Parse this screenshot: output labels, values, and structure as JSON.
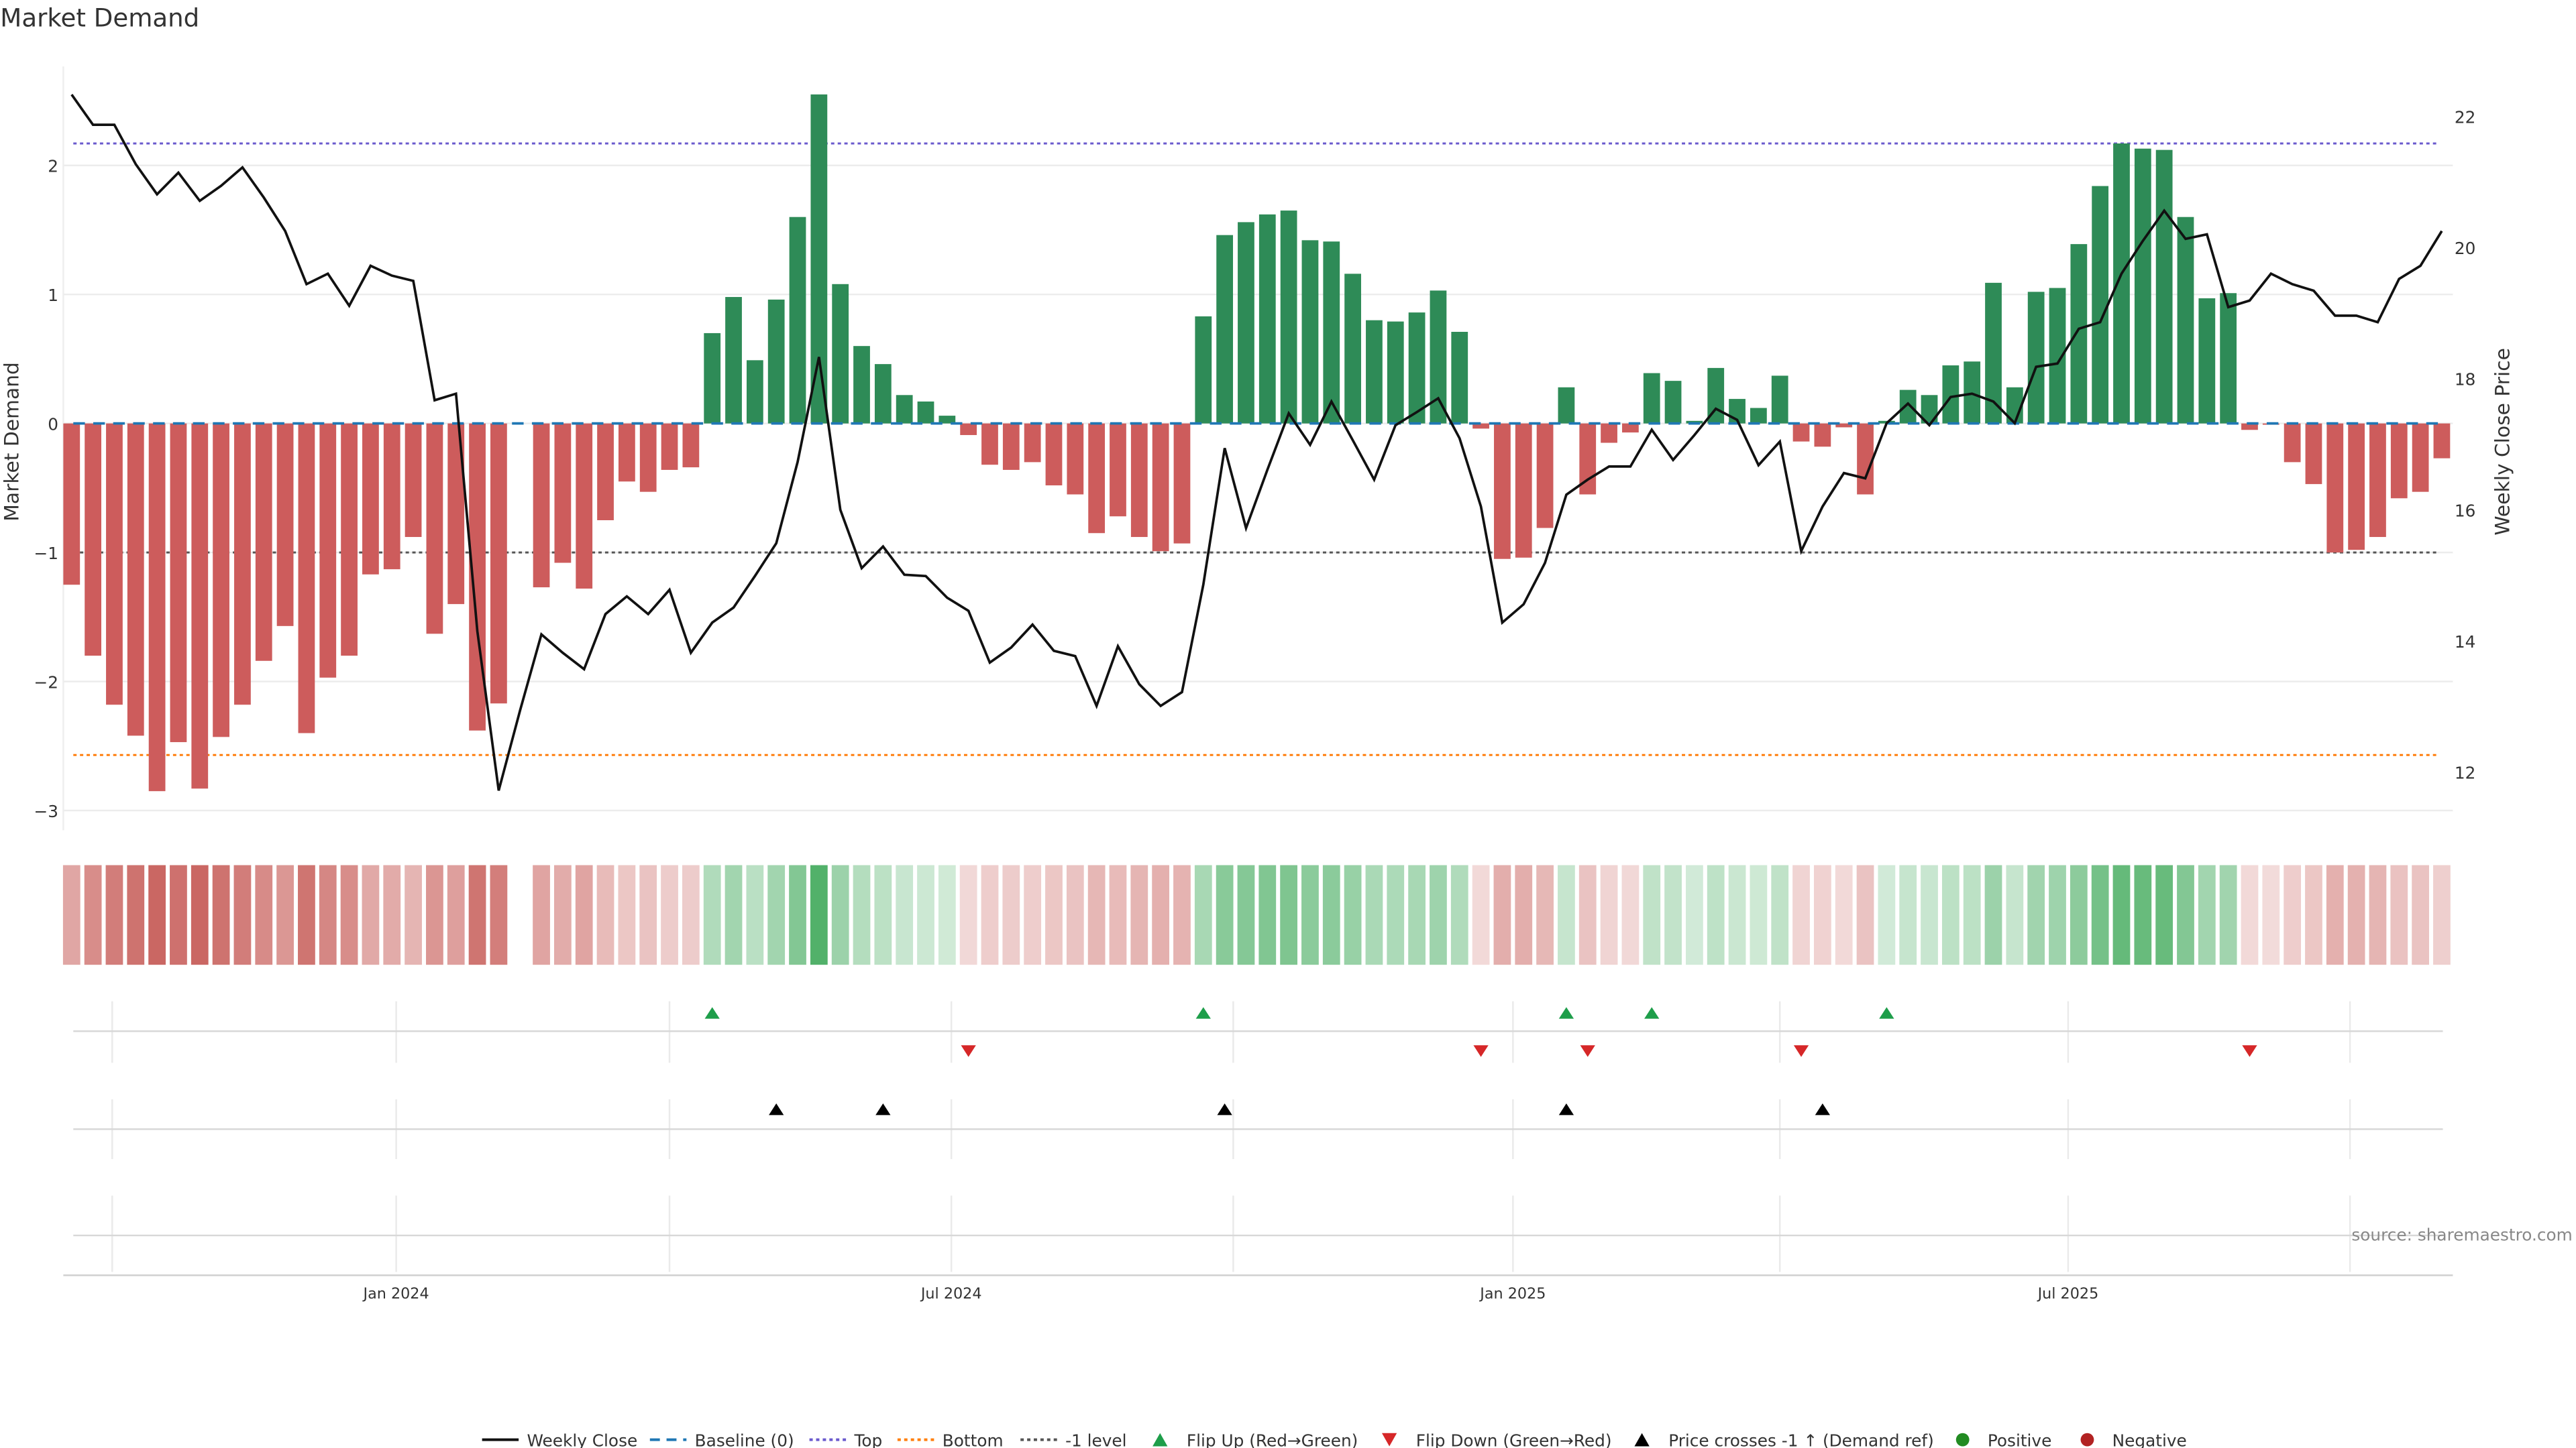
{
  "chart_data": {
    "type": "bar",
    "title": "Market Demand",
    "ylabel": "Market Demand",
    "y2label": "Weekly Close Price",
    "ylim": [
      -3.3,
      2.85
    ],
    "y2lim": [
      11.2,
      22.6
    ],
    "yticks": [
      "2",
      "1",
      "0",
      "−1",
      "−2",
      "−3"
    ],
    "ytick_values": [
      2,
      1,
      0,
      -1,
      -2,
      -3
    ],
    "y2ticks": [
      "22",
      "20",
      "18",
      "16",
      "14",
      "12"
    ],
    "y2tick_values": [
      22,
      20,
      18,
      16,
      14,
      12
    ],
    "xticks": [
      {
        "label": "Jan 2024",
        "week": 15.2
      },
      {
        "label": "Jul 2024",
        "week": 41.2
      },
      {
        "label": "Jan 2025",
        "week": 67.5
      },
      {
        "label": "Jul 2025",
        "week": 93.5
      }
    ],
    "quarter_gridlines_week": [
      1.9,
      15.2,
      28.0,
      41.2,
      54.4,
      67.5,
      80.0,
      93.5,
      106.7
    ],
    "reference_lines": {
      "top": 2.17,
      "bottom": -2.57,
      "baseline": 0,
      "minus_one": -1
    },
    "demand": [
      -1.25,
      -1.8,
      -2.18,
      -2.42,
      -2.85,
      -2.47,
      -2.83,
      -2.43,
      -2.18,
      -1.84,
      -1.57,
      -2.4,
      -1.97,
      -1.8,
      -1.17,
      -1.13,
      -0.88,
      -1.63,
      -1.4,
      -2.38,
      -2.17,
      null,
      -1.27,
      -1.08,
      -1.28,
      -0.75,
      -0.45,
      -0.53,
      -0.36,
      -0.34,
      0.7,
      0.98,
      0.49,
      0.96,
      1.6,
      2.55,
      1.08,
      0.6,
      0.46,
      0.22,
      0.17,
      0.06,
      -0.09,
      -0.32,
      -0.36,
      -0.3,
      -0.48,
      -0.55,
      -0.85,
      -0.72,
      -0.88,
      -0.99,
      -0.93,
      0.83,
      1.46,
      1.56,
      1.62,
      1.65,
      1.42,
      1.41,
      1.16,
      0.8,
      0.79,
      0.86,
      1.03,
      0.71,
      -0.04,
      -1.05,
      -1.04,
      -0.81,
      0.28,
      -0.55,
      -0.15,
      -0.07,
      0.39,
      0.33,
      0.02,
      0.43,
      0.19,
      0.12,
      0.37,
      -0.14,
      -0.18,
      -0.03,
      -0.55,
      0.02,
      0.26,
      0.22,
      0.45,
      0.48,
      1.09,
      0.28,
      1.02,
      1.05,
      1.39,
      1.84,
      2.17,
      2.13,
      2.12,
      1.6,
      0.97,
      1.01,
      -0.05,
      -0.01,
      -0.3,
      -0.47,
      -1.0,
      -0.98,
      -0.88,
      -0.58,
      -0.53,
      -0.27
    ],
    "weekly_close": [
      22.33,
      21.87,
      21.87,
      21.27,
      20.81,
      21.14,
      20.71,
      20.94,
      21.22,
      20.76,
      20.25,
      19.44,
      19.6,
      19.11,
      19.72,
      19.57,
      19.49,
      17.67,
      17.77,
      14.15,
      11.72,
      12.94,
      14.1,
      13.82,
      13.57,
      14.41,
      14.68,
      14.41,
      14.78,
      13.82,
      14.28,
      14.51,
      14.99,
      15.49,
      16.73,
      18.33,
      16.0,
      15.11,
      15.44,
      15.01,
      14.99,
      14.66,
      14.46,
      13.67,
      13.9,
      14.25,
      13.85,
      13.77,
      13.01,
      13.92,
      13.34,
      13.01,
      13.22,
      14.86,
      16.94,
      15.72,
      16.61,
      17.47,
      16.99,
      17.65,
      17.06,
      16.46,
      17.29,
      17.49,
      17.7,
      17.09,
      16.05,
      14.28,
      14.56,
      15.19,
      16.23,
      16.46,
      16.66,
      16.66,
      17.22,
      16.76,
      17.14,
      17.54,
      17.37,
      16.68,
      17.04,
      15.37,
      16.05,
      16.56,
      16.48,
      17.32,
      17.62,
      17.29,
      17.72,
      17.77,
      17.65,
      17.32,
      18.18,
      18.23,
      18.76,
      18.86,
      19.6,
      20.1,
      20.56,
      20.13,
      20.2,
      19.09,
      19.19,
      19.6,
      19.44,
      19.34,
      18.96,
      18.96,
      18.86,
      19.52,
      19.72,
      20.25
    ],
    "flip_up_weeks": [
      30,
      53,
      70,
      74,
      85
    ],
    "flip_down_weeks": [
      42,
      66,
      71,
      81,
      102
    ],
    "price_cross_weeks": [
      33,
      38,
      54,
      70,
      82
    ],
    "legend": [
      "Weekly Close",
      "Baseline (0)",
      "Top",
      "Bottom",
      "-1 level",
      "Flip Up (Red→Green)",
      "Flip Down (Green→Red)",
      "Price crosses -1 ↑ (Demand ref)",
      "Positive",
      "Negative"
    ],
    "legend_placement": "bottom-center",
    "source": "source: sharemaestro.com"
  },
  "colors": {
    "positive": "#2e8b57",
    "negative": "#cd5c5c",
    "heat_positive": "#3aa655",
    "heat_negative": "#c65a56",
    "line": "#111111",
    "baseline": "#1f77b4",
    "top": "#6a5acd",
    "bottom": "#ff7f0e",
    "minus_one": "#555555",
    "flip_up": "#1e9e4a",
    "flip_down": "#d62728",
    "price_cross": "#000000",
    "legend_positive": "#228b22",
    "legend_negative": "#b22222"
  }
}
